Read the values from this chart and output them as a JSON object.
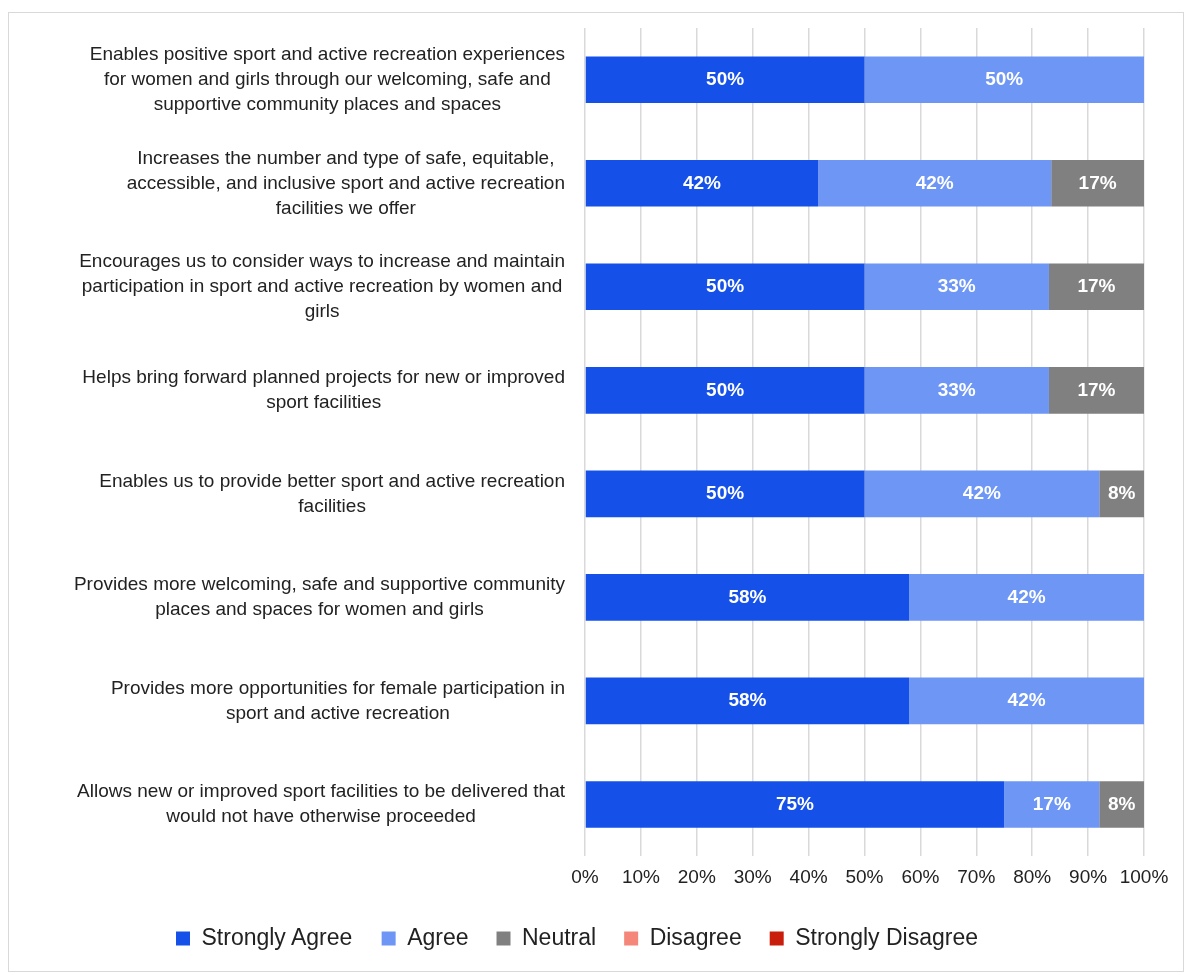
{
  "chart_data": {
    "type": "bar",
    "orientation": "horizontal",
    "stacked": true,
    "categories": [
      "Enables positive sport and active recreation experiences for women and girls through our welcoming, safe and supportive community places and spaces",
      "Increases the number and type of safe, equitable, accessible, and inclusive sport and active recreation facilities we offer",
      "Encourages us to consider ways to increase and maintain participation in sport and active recreation by women and girls",
      "Helps bring forward planned projects for new or improved sport facilities",
      "Enables us to provide better sport and active recreation facilities",
      "Provides more welcoming, safe and supportive community places and spaces for women and girls",
      "Provides more opportunities for female participation in sport and active recreation",
      "Allows new or improved sport facilities to be delivered that would not have otherwise proceeded"
    ],
    "series": [
      {
        "name": "Strongly Agree",
        "color": "#1550e8",
        "values": [
          50,
          41.7,
          50,
          50,
          50,
          58,
          58,
          75
        ],
        "value_labels": [
          "50%",
          "42%",
          "50%",
          "50%",
          "50%",
          "58%",
          "58%",
          "75%"
        ]
      },
      {
        "name": "Agree",
        "color": "#6d96f5",
        "values": [
          50,
          41.7,
          33,
          33,
          42,
          42,
          42,
          17
        ],
        "value_labels": [
          "50%",
          "42%",
          "33%",
          "33%",
          "42%",
          "42%",
          "42%",
          "17%"
        ]
      },
      {
        "name": "Neutral",
        "color": "#808080",
        "values": [
          0,
          16.6,
          17,
          17,
          8,
          0,
          0,
          8
        ],
        "value_labels": [
          null,
          "17%",
          "17%",
          "17%",
          "8%",
          null,
          null,
          "8%"
        ]
      },
      {
        "name": "Disagree",
        "color": "#f4877a",
        "values": [
          0,
          0,
          0,
          0,
          0,
          0,
          0,
          0
        ],
        "value_labels": [
          null,
          null,
          null,
          null,
          null,
          null,
          null,
          null
        ]
      },
      {
        "name": "Strongly Disagree",
        "color": "#c81e0b",
        "values": [
          0,
          0,
          0,
          0,
          0,
          0,
          0,
          0
        ],
        "value_labels": [
          null,
          null,
          null,
          null,
          null,
          null,
          null,
          null
        ]
      }
    ],
    "xlim": [
      0,
      100
    ],
    "xticks": [
      {
        "value": 0,
        "label": "0%"
      },
      {
        "value": 10,
        "label": "10%"
      },
      {
        "value": 20,
        "label": "20%"
      },
      {
        "value": 30,
        "label": "30%"
      },
      {
        "value": 40,
        "label": "40%"
      },
      {
        "value": 50,
        "label": "50%"
      },
      {
        "value": 60,
        "label": "60%"
      },
      {
        "value": 70,
        "label": "70%"
      },
      {
        "value": 80,
        "label": "80%"
      },
      {
        "value": 90,
        "label": "90%"
      },
      {
        "value": 100,
        "label": "100%"
      }
    ],
    "grid": "x",
    "legend": "bottom"
  }
}
